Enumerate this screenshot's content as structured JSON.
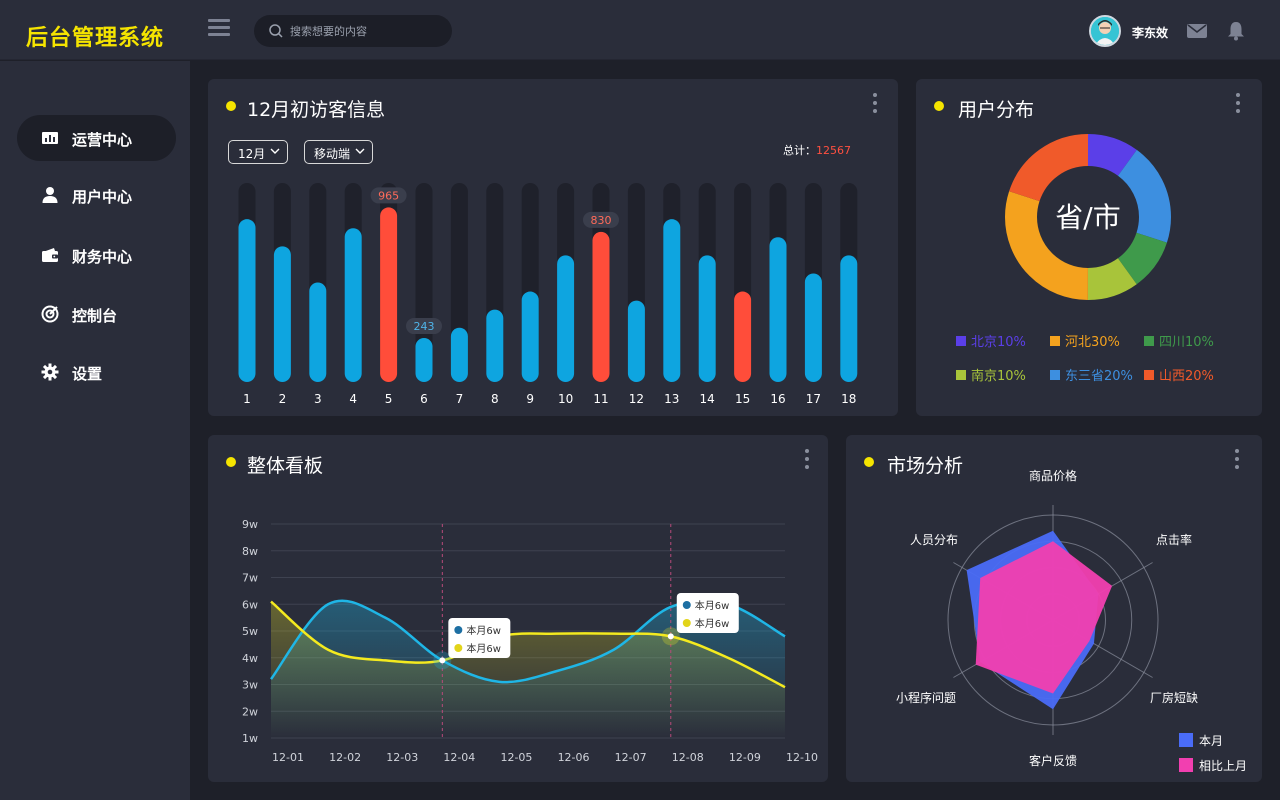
{
  "app": {
    "logo": "后台管理系统"
  },
  "search": {
    "placeholder": "搜索想要的内容"
  },
  "user": {
    "name": "李东效"
  },
  "sidebar": {
    "items": [
      {
        "label": "运营中心",
        "icon": "bar-chart-icon",
        "active": true
      },
      {
        "label": "用户中心",
        "icon": "user-icon"
      },
      {
        "label": "财务中心",
        "icon": "wallet-icon"
      },
      {
        "label": "控制台",
        "icon": "target-icon"
      },
      {
        "label": "设置",
        "icon": "gear-icon"
      }
    ]
  },
  "visitors": {
    "title": "12月初访客信息",
    "month_select": "12月",
    "device_select": "移动端",
    "total_label": "总计：",
    "total_value": "12567"
  },
  "distribution": {
    "title": "用户分布",
    "center_label": "省/市"
  },
  "overview": {
    "title": "整体看板"
  },
  "market": {
    "title": "市场分析"
  },
  "colors": {
    "accent": "#f5e400",
    "bar": "#0ea5e0",
    "bar_highlight": "#ff4d3a",
    "track": "#1f212b",
    "line_blue": "#1fb6e6",
    "line_yellow": "#f4ea1f",
    "radar_current": "#4a6cf7",
    "radar_prev": "#f23fb0"
  },
  "chart_data": [
    {
      "type": "bar",
      "title": "12月初访客信息",
      "categories": [
        "1",
        "2",
        "3",
        "4",
        "5",
        "6",
        "7",
        "8",
        "9",
        "10",
        "11",
        "12",
        "13",
        "14",
        "15",
        "16",
        "17",
        "18"
      ],
      "values": [
        900,
        750,
        550,
        850,
        965,
        243,
        300,
        400,
        500,
        700,
        830,
        450,
        900,
        700,
        500,
        800,
        600,
        700
      ],
      "highlight_indices": [
        4,
        10,
        14
      ],
      "labeled": {
        "4": "965",
        "5": "243",
        "10": "830"
      },
      "ylim": [
        0,
        1100
      ]
    },
    {
      "type": "pie",
      "title": "用户分布",
      "slices": [
        {
          "name": "北京10%",
          "value": 10,
          "color": "#5b3fe8"
        },
        {
          "name": "东三省20%",
          "value": 20,
          "color": "#3d8fe0"
        },
        {
          "name": "四川10%",
          "value": 10,
          "color": "#3f9a4b"
        },
        {
          "name": "南京10%",
          "value": 10,
          "color": "#a8c43a"
        },
        {
          "name": "河北30%",
          "value": 30,
          "color": "#f4a21e"
        },
        {
          "name": "山西20%",
          "value": 20,
          "color": "#f05a2a"
        }
      ],
      "legend": [
        {
          "name": "北京10%",
          "color": "#5b3fe8"
        },
        {
          "name": "河北30%",
          "color": "#f4a21e"
        },
        {
          "name": "四川10%",
          "color": "#3f9a4b"
        },
        {
          "name": "南京10%",
          "color": "#a8c43a"
        },
        {
          "name": "东三省20%",
          "color": "#3d8fe0"
        },
        {
          "name": "山西20%",
          "color": "#f05a2a"
        }
      ]
    },
    {
      "type": "line",
      "title": "整体看板",
      "x": [
        "12-01",
        "12-02",
        "12-03",
        "12-04",
        "12-05",
        "12-06",
        "12-07",
        "12-08",
        "12-09",
        "12-10"
      ],
      "y_ticks": [
        "1w",
        "2w",
        "3w",
        "4w",
        "5w",
        "6w",
        "7w",
        "8w",
        "9w"
      ],
      "ylim": [
        1,
        9
      ],
      "series": [
        {
          "values": [
            3.2,
            6.0,
            5.5,
            3.9,
            3.1,
            3.5,
            4.3,
            5.9,
            6.0,
            4.8
          ],
          "color": "#1fb6e6"
        },
        {
          "values": [
            6.1,
            4.3,
            3.9,
            3.9,
            4.8,
            4.9,
            4.9,
            4.8,
            4.0,
            2.9
          ],
          "color": "#f4ea1f"
        }
      ],
      "markers": [
        {
          "x": "12-04",
          "lines": [
            "本月6w",
            "本月6w"
          ]
        },
        {
          "x": "12-08",
          "lines": [
            "本月6w",
            "本月6w"
          ]
        }
      ]
    },
    {
      "type": "radar",
      "title": "市场分析",
      "axes": [
        "商品价格",
        "点击率",
        "厂房短缺",
        "客户反馈",
        "小程序问题",
        "人员分布"
      ],
      "series": [
        {
          "name": "本月",
          "values": [
            0.85,
            0.5,
            0.45,
            0.85,
            0.8,
            0.95
          ],
          "color": "#4a6cf7"
        },
        {
          "name": "相比上月",
          "values": [
            0.75,
            0.65,
            0.4,
            0.7,
            0.85,
            0.8
          ],
          "color": "#f23fb0"
        }
      ]
    }
  ]
}
